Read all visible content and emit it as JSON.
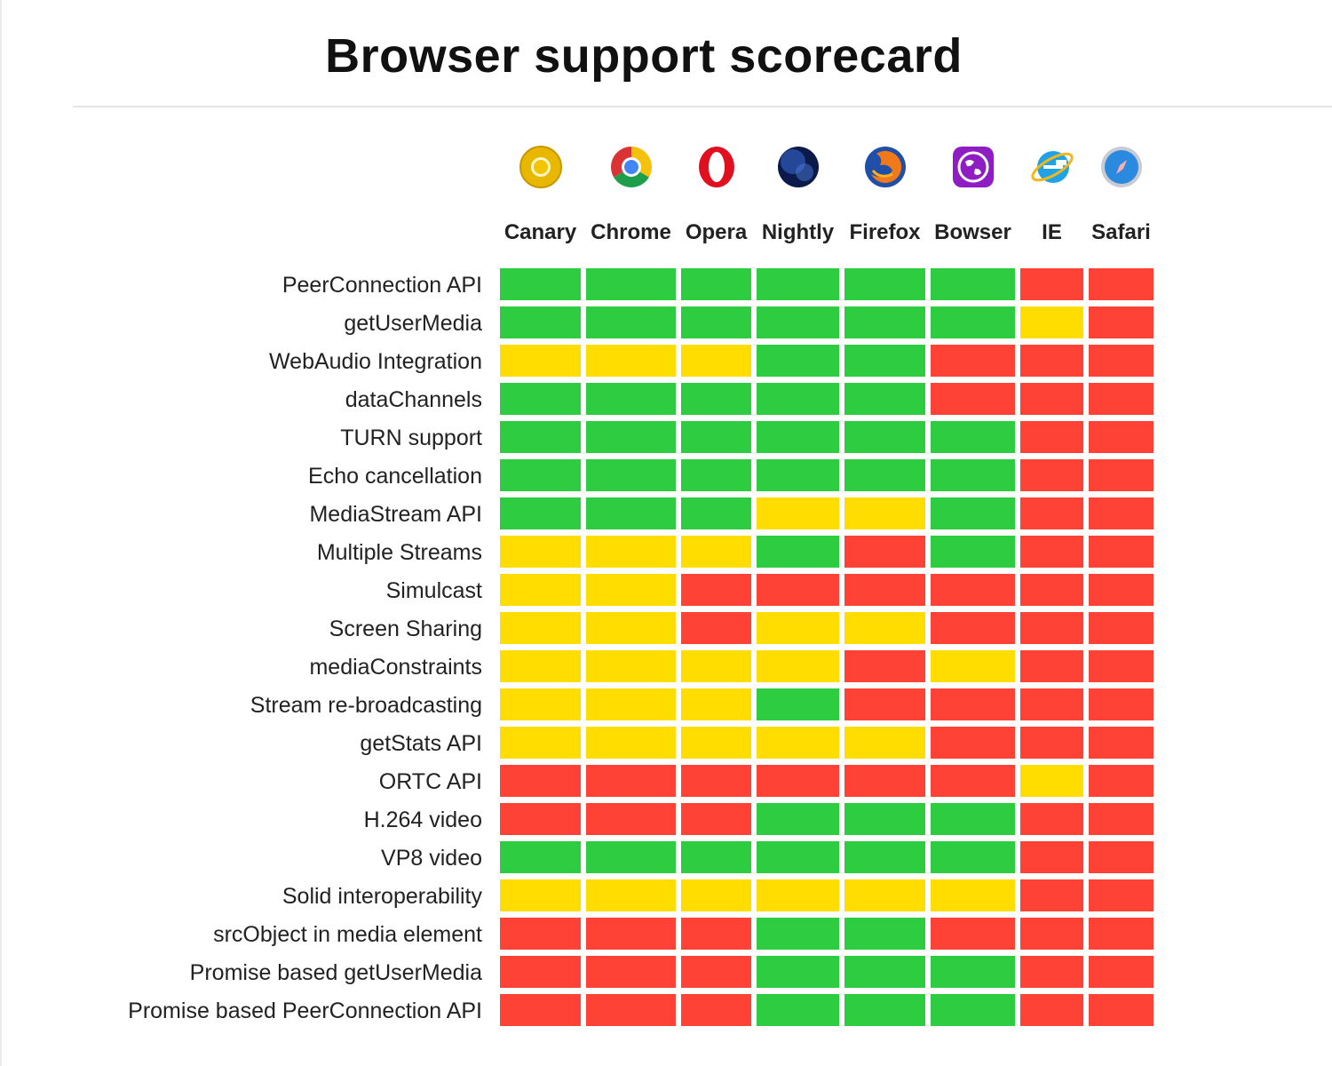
{
  "title": "Browser support scorecard",
  "colors": {
    "green": "#2ecc40",
    "yellow": "#ffdd00",
    "red": "#ff4136"
  },
  "chart_data": {
    "type": "heatmap",
    "columns": [
      {
        "name": "Canary",
        "icon": "canary-icon"
      },
      {
        "name": "Chrome",
        "icon": "chrome-icon"
      },
      {
        "name": "Opera",
        "icon": "opera-icon"
      },
      {
        "name": "Nightly",
        "icon": "nightly-icon"
      },
      {
        "name": "Firefox",
        "icon": "firefox-icon"
      },
      {
        "name": "Bowser",
        "icon": "bowser-icon"
      },
      {
        "name": "IE",
        "icon": "ie-icon"
      },
      {
        "name": "Safari",
        "icon": "safari-icon"
      }
    ],
    "status_legend": {
      "G": "green",
      "Y": "yellow",
      "R": "red"
    },
    "rows": [
      {
        "feature": "PeerConnection API",
        "status": [
          "G",
          "G",
          "G",
          "G",
          "G",
          "G",
          "R",
          "R"
        ]
      },
      {
        "feature": "getUserMedia",
        "status": [
          "G",
          "G",
          "G",
          "G",
          "G",
          "G",
          "Y",
          "R"
        ]
      },
      {
        "feature": "WebAudio Integration",
        "status": [
          "Y",
          "Y",
          "Y",
          "G",
          "G",
          "R",
          "R",
          "R"
        ]
      },
      {
        "feature": "dataChannels",
        "status": [
          "G",
          "G",
          "G",
          "G",
          "G",
          "R",
          "R",
          "R"
        ]
      },
      {
        "feature": "TURN support",
        "status": [
          "G",
          "G",
          "G",
          "G",
          "G",
          "G",
          "R",
          "R"
        ]
      },
      {
        "feature": "Echo cancellation",
        "status": [
          "G",
          "G",
          "G",
          "G",
          "G",
          "G",
          "R",
          "R"
        ]
      },
      {
        "feature": "MediaStream API",
        "status": [
          "G",
          "G",
          "G",
          "Y",
          "Y",
          "G",
          "R",
          "R"
        ]
      },
      {
        "feature": "Multiple Streams",
        "status": [
          "Y",
          "Y",
          "Y",
          "G",
          "R",
          "G",
          "R",
          "R"
        ]
      },
      {
        "feature": "Simulcast",
        "status": [
          "Y",
          "Y",
          "R",
          "R",
          "R",
          "R",
          "R",
          "R"
        ]
      },
      {
        "feature": "Screen Sharing",
        "status": [
          "Y",
          "Y",
          "R",
          "Y",
          "Y",
          "R",
          "R",
          "R"
        ]
      },
      {
        "feature": "mediaConstraints",
        "status": [
          "Y",
          "Y",
          "Y",
          "Y",
          "R",
          "Y",
          "R",
          "R"
        ]
      },
      {
        "feature": "Stream re-broadcasting",
        "status": [
          "Y",
          "Y",
          "Y",
          "G",
          "R",
          "R",
          "R",
          "R"
        ]
      },
      {
        "feature": "getStats API",
        "status": [
          "Y",
          "Y",
          "Y",
          "Y",
          "Y",
          "R",
          "R",
          "R"
        ]
      },
      {
        "feature": "ORTC API",
        "status": [
          "R",
          "R",
          "R",
          "R",
          "R",
          "R",
          "Y",
          "R"
        ]
      },
      {
        "feature": "H.264 video",
        "status": [
          "R",
          "R",
          "R",
          "G",
          "G",
          "G",
          "R",
          "R"
        ]
      },
      {
        "feature": "VP8 video",
        "status": [
          "G",
          "G",
          "G",
          "G",
          "G",
          "G",
          "R",
          "R"
        ]
      },
      {
        "feature": "Solid interoperability",
        "status": [
          "Y",
          "Y",
          "Y",
          "Y",
          "Y",
          "Y",
          "R",
          "R"
        ]
      },
      {
        "feature": "srcObject in media element",
        "status": [
          "R",
          "R",
          "R",
          "G",
          "G",
          "R",
          "R",
          "R"
        ]
      },
      {
        "feature": "Promise based getUserMedia",
        "status": [
          "R",
          "R",
          "R",
          "G",
          "G",
          "G",
          "R",
          "R"
        ]
      },
      {
        "feature": "Promise based PeerConnection API",
        "status": [
          "R",
          "R",
          "R",
          "G",
          "G",
          "G",
          "R",
          "R"
        ]
      }
    ]
  }
}
